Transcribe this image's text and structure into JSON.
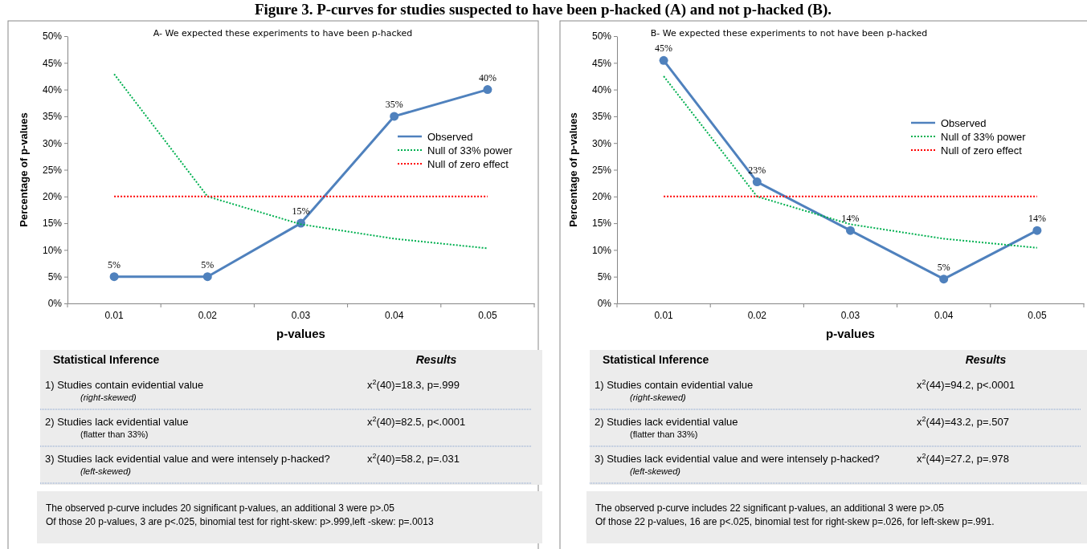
{
  "chart_data": [
    {
      "type": "line",
      "title": "Figure 3. P-curves for studies suspected to have been p-hacked (A) and not p-hacked (B).",
      "subtitle": "A- We expected these experiments to have been p-hacked",
      "xlabel": "p-values",
      "ylabel": "Percentage of p-values",
      "categories": [
        "0.01",
        "0.02",
        "0.03",
        "0.04",
        "0.05"
      ],
      "series": [
        {
          "name": "Observed",
          "color": "#4f81bd",
          "values": [
            5,
            5,
            15,
            35,
            40
          ],
          "value_labels": [
            "5%",
            "5%",
            "15%",
            "35%",
            "40%"
          ],
          "marker": "circle",
          "line_style": "solid"
        },
        {
          "name": "Null of 33% power",
          "color": "#00b050",
          "values": [
            42.9,
            20,
            14.8,
            12.1,
            10.3
          ],
          "marker": "none",
          "line_style": "dotted"
        },
        {
          "name": "Null of zero effect",
          "color": "#ff0000",
          "values": [
            20,
            20,
            20,
            20,
            20
          ],
          "marker": "none",
          "line_style": "dotted"
        }
      ],
      "ylim": [
        0,
        50
      ],
      "yticks": [
        {
          "value": 0,
          "label": "0%"
        },
        {
          "value": 5,
          "label": "5%"
        },
        {
          "value": 10,
          "label": "10%"
        },
        {
          "value": 15,
          "label": "15%"
        },
        {
          "value": 20,
          "label": "20%"
        },
        {
          "value": 25,
          "label": "25%"
        },
        {
          "value": 30,
          "label": "30%"
        },
        {
          "value": 35,
          "label": "35%"
        },
        {
          "value": 40,
          "label": "40%"
        },
        {
          "value": 45,
          "label": "45%"
        },
        {
          "value": 50,
          "label": "50%"
        }
      ],
      "legend": "right",
      "annotations": [
        "Statistical Inference",
        "Results",
        "1) Studies contain evidential value",
        "(right-skewed)",
        "x$^{2}$(40)=18.3, p=.999",
        "2) Studies lack evidential value",
        "(flatter than 33%)",
        "x$^{2}$(40)=82.5, p<.0001",
        "3) Studies lack evidential value and were intensely p-hacked?",
        "(left-skewed)",
        "x$^{2}$(40)=58.2, p=.031",
        "The observed p-curve includes 20 significant p-values, an additional 3 were p>.05",
        "Of those 20 p-values, 3 are p<.025, binomial test for right-skew: p>.999,left -skew: p=.0013"
      ]
    },
    {
      "type": "line",
      "subtitle": "B- We expected these experiments to not have been p-hacked",
      "xlabel": "p-values",
      "ylabel": "Percentage of p-values",
      "categories": [
        "0.01",
        "0.02",
        "0.03",
        "0.04",
        "0.05"
      ],
      "series": [
        {
          "name": "Observed",
          "color": "#4f81bd",
          "values": [
            45.45,
            22.73,
            13.64,
            4.55,
            13.64
          ],
          "value_labels": [
            "45%",
            "23%",
            "14%",
            "5%",
            "14%"
          ],
          "marker": "circle",
          "line_style": "solid"
        },
        {
          "name": "Null of 33% power",
          "color": "#00b050",
          "values": [
            42.5,
            20,
            14.8,
            12.1,
            10.4
          ],
          "marker": "none",
          "line_style": "dotted"
        },
        {
          "name": "Null of zero effect",
          "color": "#ff0000",
          "values": [
            20,
            20,
            20,
            20,
            20
          ],
          "marker": "none",
          "line_style": "dotted"
        }
      ],
      "ylim": [
        0,
        50
      ],
      "yticks": [
        {
          "value": 0,
          "label": "0%"
        },
        {
          "value": 5,
          "label": "5%"
        },
        {
          "value": 10,
          "label": "10%"
        },
        {
          "value": 15,
          "label": "15%"
        },
        {
          "value": 20,
          "label": "20%"
        },
        {
          "value": 25,
          "label": "25%"
        },
        {
          "value": 30,
          "label": "30%"
        },
        {
          "value": 35,
          "label": "35%"
        },
        {
          "value": 40,
          "label": "40%"
        },
        {
          "value": 45,
          "label": "45%"
        },
        {
          "value": 50,
          "label": "50%"
        }
      ],
      "legend": "top right",
      "annotations": [
        "Statistical Inference",
        "Results",
        "1) Studies contain evidential value",
        "(right-skewed)",
        "x$^{2}$(44)=94.2, p<.0001",
        "2) Studies lack evidential value",
        "(flatter than 33%)",
        "x$^{2}$(44)=43.2, p=.507",
        "3) Studies lack evidential value and were intensely p-hacked?",
        "(left-skewed)",
        "x$^{2}$(44)=27.2, p=.978",
        "The observed p-curve includes 22 significant p-values, an additional 3 were p>.05",
        "Of those 22 p-values, 16 are p<.025, binomial test for right-skew p=.026, for left-skew p=.991."
      ]
    }
  ]
}
